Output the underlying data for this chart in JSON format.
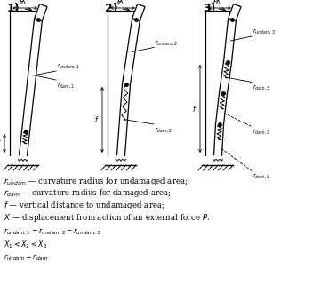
{
  "bg_color": "#ffffff",
  "legend_lines": [
    "$r_{undam}$ — curvature radius for undamaged area;",
    "$r_{dam}$ — curvature radius for damaged area;",
    "$f$ — vertical distance to undamaged area;",
    "$X$ — displacement from action of an external force $P$."
  ],
  "equations": [
    "$r_{undam,1} = r_{undam,2} = r_{undam,3}$",
    "$X_1 < X_2 < X_3$",
    "$r_{undam} = r_{dam}$"
  ],
  "diagram_labels": [
    "1)",
    "2)",
    "3)"
  ]
}
